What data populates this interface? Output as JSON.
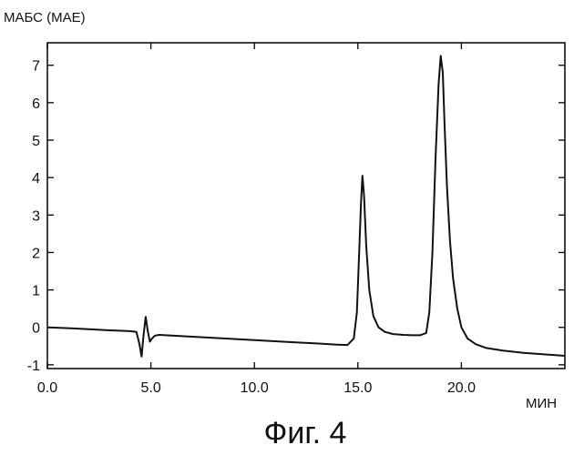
{
  "chart_data": {
    "type": "line",
    "ylabel": "МАБС (МАЕ)",
    "xlabel": "МИН",
    "caption": "Фиг. 4",
    "xlim": [
      0,
      25
    ],
    "ylim": [
      -1.1,
      7.6
    ],
    "x_ticks": [
      0,
      5,
      10,
      15,
      20
    ],
    "x_tick_labels": [
      "0.0",
      "5.0",
      "10.0",
      "15.0",
      "20.0"
    ],
    "y_ticks": [
      -1,
      0,
      1,
      2,
      3,
      4,
      5,
      6,
      7
    ],
    "y_tick_labels": [
      "-1",
      "0",
      "1",
      "2",
      "3",
      "4",
      "5",
      "6",
      "7"
    ],
    "grid": false,
    "series": [
      {
        "x": [
          0,
          1,
          2,
          3,
          4,
          4.3,
          4.45,
          4.55,
          4.65,
          4.75,
          4.85,
          4.95,
          5.05,
          5.2,
          5.4,
          6,
          7,
          8,
          9,
          10,
          11,
          12,
          13,
          14,
          14.5,
          14.8,
          14.95,
          15.05,
          15.15,
          15.22,
          15.3,
          15.4,
          15.55,
          15.75,
          16,
          16.3,
          16.7,
          17.2,
          17.6,
          18,
          18.3,
          18.45,
          18.6,
          18.75,
          18.9,
          19.0,
          19.1,
          19.18,
          19.3,
          19.45,
          19.6,
          19.8,
          20.0,
          20.3,
          20.7,
          21.2,
          22,
          23,
          24,
          25
        ],
        "y": [
          0.0,
          -0.02,
          -0.05,
          -0.08,
          -0.1,
          -0.12,
          -0.45,
          -0.78,
          -0.2,
          0.28,
          -0.1,
          -0.38,
          -0.3,
          -0.22,
          -0.2,
          -0.22,
          -0.25,
          -0.28,
          -0.31,
          -0.34,
          -0.37,
          -0.4,
          -0.43,
          -0.46,
          -0.47,
          -0.3,
          0.4,
          1.8,
          3.3,
          4.05,
          3.5,
          2.2,
          1.0,
          0.3,
          0.0,
          -0.12,
          -0.18,
          -0.2,
          -0.21,
          -0.21,
          -0.15,
          0.4,
          2.0,
          4.5,
          6.5,
          7.25,
          6.8,
          5.5,
          3.8,
          2.3,
          1.3,
          0.5,
          0.0,
          -0.3,
          -0.45,
          -0.55,
          -0.62,
          -0.68,
          -0.72,
          -0.76
        ]
      }
    ]
  }
}
